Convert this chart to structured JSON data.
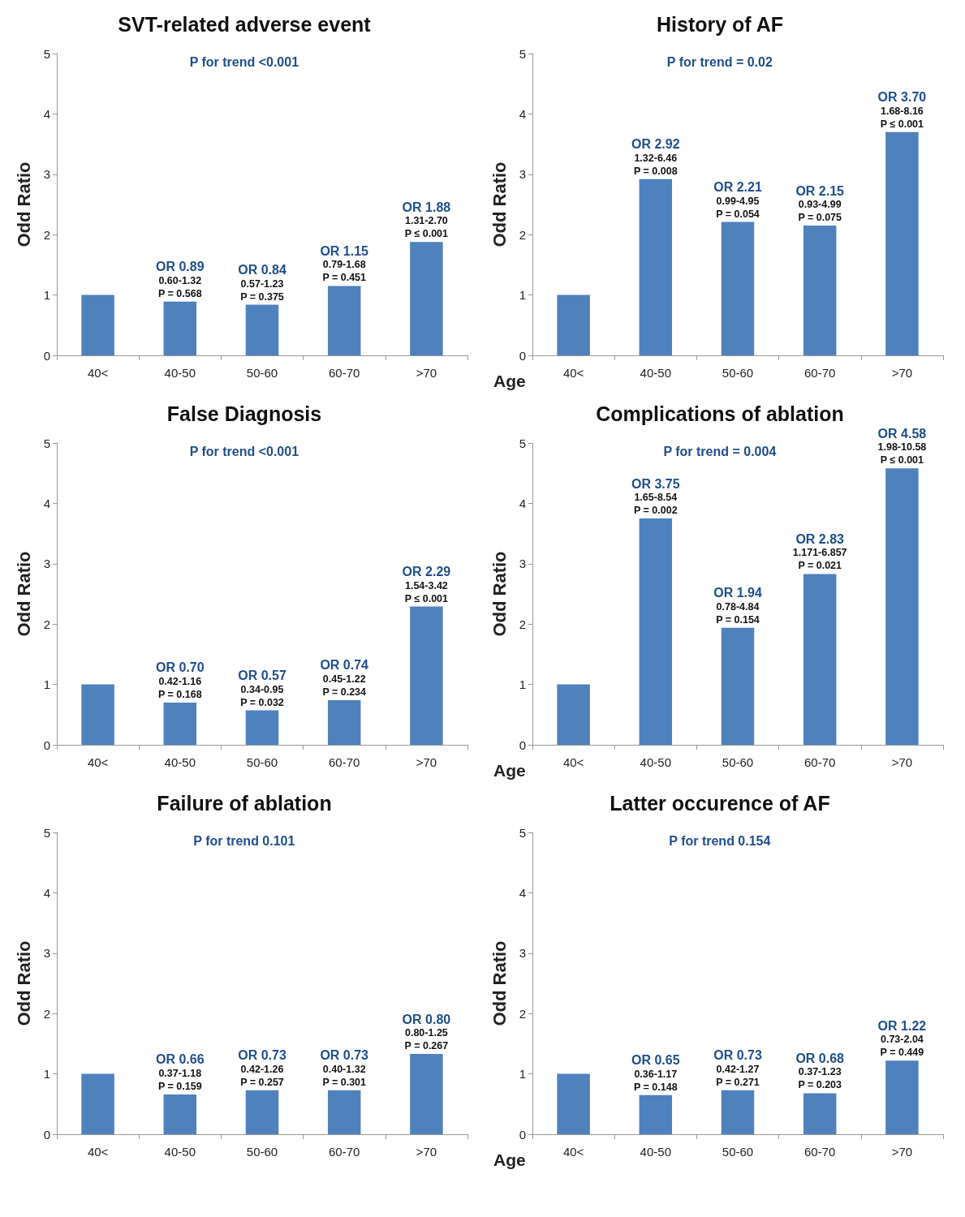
{
  "chart_data": [
    {
      "type": "bar",
      "title": "SVT-related adverse event",
      "ylabel": "Odd Ratio",
      "categories": [
        "40<",
        "40-50",
        "50-60",
        "60-70",
        ">70"
      ],
      "values": [
        1,
        0.89,
        0.84,
        1.15,
        1.88
      ],
      "color": "#4f81bd",
      "ylim": [
        0,
        5
      ],
      "yticks": [
        0,
        1,
        2,
        3,
        4,
        5
      ],
      "annotations": [
        "P for trend <0.001",
        {
          "text": "OR 0.89\n0.60-1.32\nP = 0.568",
          "x": "40-50",
          "y": 0.89
        },
        {
          "text": "OR 0.84\n0.57-1.23\nP = 0.375",
          "x": "50-60",
          "y": 0.84
        },
        {
          "text": "OR 1.15\n0.79-1.68\nP = 0.451",
          "x": "60-70",
          "y": 1.15
        },
        {
          "text": "OR 1.88\n1.31-2.70\nP ≤ 0.001",
          "x": ">70",
          "y": 1.88
        }
      ]
    },
    {
      "type": "bar",
      "title": "History of AF",
      "ylabel": "Odd Ratio",
      "xlabel": "Age",
      "categories": [
        "40<",
        "40-50",
        "50-60",
        "60-70",
        ">70"
      ],
      "values": [
        1,
        2.92,
        2.21,
        2.15,
        3.7
      ],
      "color": "#4f81bd",
      "ylim": [
        0,
        5
      ],
      "yticks": [
        0,
        1,
        2,
        3,
        4,
        5
      ],
      "annotations": [
        "P for trend = 0.02",
        {
          "text": "OR 2.92\n1.32-6.46\nP = 0.008",
          "x": "40-50",
          "y": 2.92
        },
        {
          "text": "OR 2.21\n0.99-4.95\nP = 0.054",
          "x": "50-60",
          "y": 2.21
        },
        {
          "text": "OR 2.15\n0.93-4.99\nP = 0.075",
          "x": "60-70",
          "y": 2.15
        },
        {
          "text": "OR 3.70\n1.68-8.16\nP ≤ 0.001",
          "x": ">70",
          "y": 3.7
        }
      ]
    },
    {
      "type": "bar",
      "title": "False Diagnosis",
      "ylabel": "Odd Ratio",
      "categories": [
        "40<",
        "40-50",
        "50-60",
        "60-70",
        ">70"
      ],
      "values": [
        1,
        0.7,
        0.57,
        0.74,
        2.29
      ],
      "color": "#4f81bd",
      "ylim": [
        0,
        5
      ],
      "yticks": [
        0,
        1,
        2,
        3,
        4,
        5
      ],
      "annotations": [
        "P for trend <0.001",
        {
          "text": "OR 0.70\n0.42-1.16\nP = 0.168",
          "x": "40-50",
          "y": 0.7
        },
        {
          "text": "OR 0.57\n0.34-0.95\nP = 0.032",
          "x": "50-60",
          "y": 0.57
        },
        {
          "text": "OR 0.74\n0.45-1.22\nP = 0.234",
          "x": "60-70",
          "y": 0.74
        },
        {
          "text": "OR 2.29\n1.54-3.42\nP ≤ 0.001",
          "x": ">70",
          "y": 2.29
        }
      ]
    },
    {
      "type": "bar",
      "title": "Complications of ablation",
      "ylabel": "Odd Ratio",
      "xlabel": "Age",
      "categories": [
        "40<",
        "40-50",
        "50-60",
        "60-70",
        ">70"
      ],
      "values": [
        1,
        3.75,
        1.94,
        2.83,
        4.58
      ],
      "color": "#4f81bd",
      "ylim": [
        0,
        5
      ],
      "yticks": [
        0,
        1,
        2,
        3,
        4,
        5
      ],
      "annotations": [
        "P for trend = 0.004",
        {
          "text": "OR 3.75\n1.65-8.54\nP = 0.002",
          "x": "40-50",
          "y": 3.75
        },
        {
          "text": "OR 1.94\n0.78-4.84\nP = 0.154",
          "x": "50-60",
          "y": 1.94
        },
        {
          "text": "OR 2.83\n1.171-6.857\nP = 0.021",
          "x": "60-70",
          "y": 2.83
        },
        {
          "text": "OR 4.58\n1.98-10.58\nP ≤ 0.001",
          "x": ">70",
          "y": 4.58
        }
      ]
    },
    {
      "type": "bar",
      "title": "Failure of ablation",
      "ylabel": "Odd Ratio",
      "categories": [
        "40<",
        "40-50",
        "50-60",
        "60-70",
        ">70"
      ],
      "values": [
        1,
        0.66,
        0.73,
        0.73,
        1.33
      ],
      "color": "#4f81bd",
      "ylim": [
        0,
        5
      ],
      "yticks": [
        0,
        1,
        2,
        3,
        4,
        5
      ],
      "annotations": [
        "P for trend 0.101",
        {
          "text": "OR 0.66\n0.37-1.18\nP = 0.159",
          "x": "40-50",
          "y": 0.66
        },
        {
          "text": "OR 0.73\n0.42-1.26\nP = 0.257",
          "x": "50-60",
          "y": 0.73
        },
        {
          "text": "OR 0.73\n0.40-1.32\nP = 0.301",
          "x": "60-70",
          "y": 0.73
        },
        {
          "text": "OR 0.80\n0.80-1.25\nP = 0.267",
          "x": ">70",
          "y": 1.33
        }
      ]
    },
    {
      "type": "bar",
      "title": "Latter occurence of AF",
      "ylabel": "Odd Ratio",
      "xlabel": "Age",
      "categories": [
        "40<",
        "40-50",
        "50-60",
        "60-70",
        ">70"
      ],
      "values": [
        1,
        0.65,
        0.73,
        0.68,
        1.22
      ],
      "color": "#4f81bd",
      "ylim": [
        0,
        5
      ],
      "yticks": [
        0,
        1,
        2,
        3,
        4,
        5
      ],
      "annotations": [
        "P for trend 0.154",
        {
          "text": "OR 0.65\n0.36-1.17\nP = 0.148",
          "x": "40-50",
          "y": 0.65
        },
        {
          "text": "OR 0.73\n0.42-1.27\nP = 0.271",
          "x": "50-60",
          "y": 0.73
        },
        {
          "text": "OR 0.68\n0.37-1.23\nP = 0.203",
          "x": "60-70",
          "y": 0.68
        },
        {
          "text": "OR 1.22\n0.73-2.04\nP = 0.449",
          "x": ">70",
          "y": 1.22
        }
      ]
    }
  ]
}
